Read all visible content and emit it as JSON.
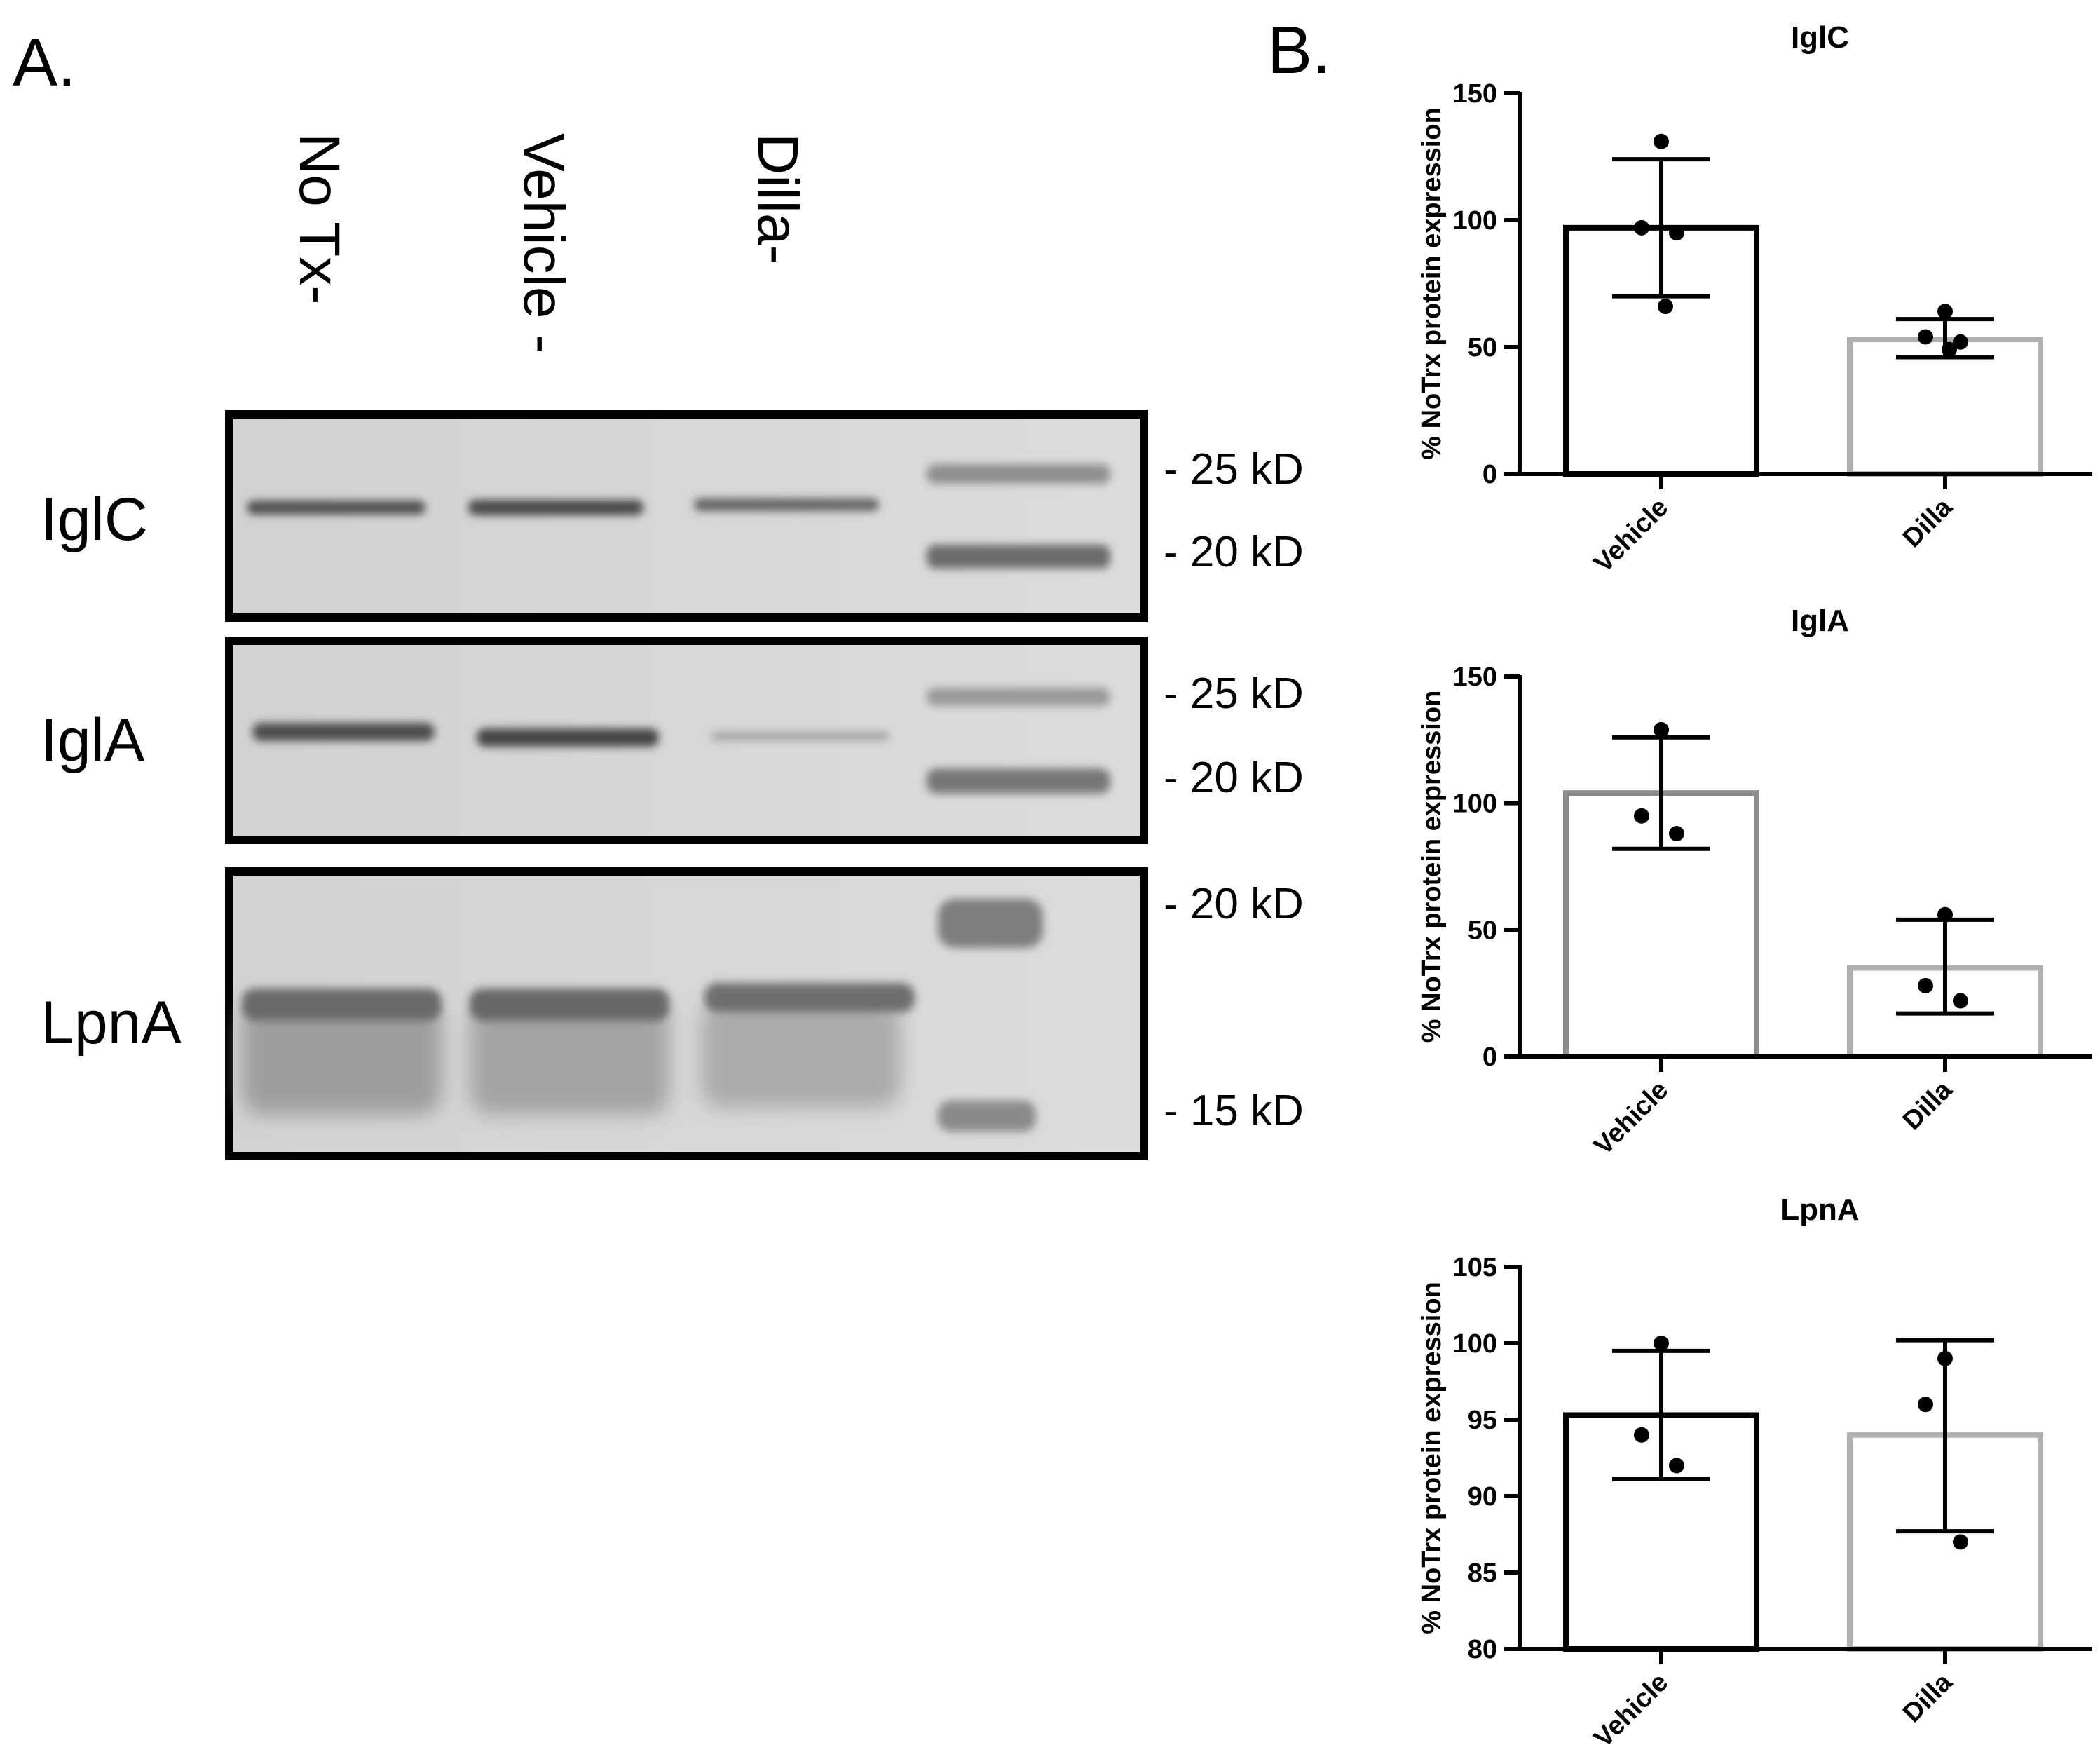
{
  "panel_a": {
    "label": "A.",
    "lanes": [
      "No Tx-",
      "Vehicle -",
      "Dilla-"
    ],
    "blots": [
      {
        "name": "IglC",
        "markers": [
          "- 25 kD",
          "- 20 kD"
        ]
      },
      {
        "name": "IglA",
        "markers": [
          "- 25 kD",
          "- 20 kD"
        ]
      },
      {
        "name": "LpnA",
        "markers": [
          "- 20 kD",
          "- 15 kD"
        ]
      }
    ]
  },
  "panel_b": {
    "label": "B."
  },
  "colors": {
    "black": "#000000",
    "grey_bar": "#b0b0b0",
    "mid_grey_bar": "#8c8c8c",
    "membrane": "#d6d6d6"
  },
  "chart_data": [
    {
      "type": "bar",
      "title": "IglC",
      "ylabel": "% NoTrx protein expression",
      "xlabel": "",
      "categories": [
        "Vehicle",
        "Dilla"
      ],
      "values": [
        97,
        53
      ],
      "error_low": [
        70,
        46
      ],
      "error_high": [
        124,
        61
      ],
      "points": [
        [
          131,
          97,
          95,
          66
        ],
        [
          64,
          54,
          52,
          49
        ]
      ],
      "ylim": [
        0,
        150
      ],
      "yticks": [
        0,
        50,
        100,
        150
      ],
      "bar_colors": [
        "#000000",
        "#b0b0b0"
      ]
    },
    {
      "type": "bar",
      "title": "IglA",
      "ylabel": "% NoTrx protein expression",
      "xlabel": "",
      "categories": [
        "Vehicle",
        "Dilla"
      ],
      "values": [
        104,
        35
      ],
      "error_low": [
        82,
        17
      ],
      "error_high": [
        126,
        54
      ],
      "points": [
        [
          129,
          95,
          88
        ],
        [
          56,
          28,
          22
        ]
      ],
      "ylim": [
        0,
        150
      ],
      "yticks": [
        0,
        50,
        100,
        150
      ],
      "bar_colors": [
        "#8c8c8c",
        "#b0b0b0"
      ]
    },
    {
      "type": "bar",
      "title": "LpnA",
      "ylabel": "% NoTrx protein expression",
      "xlabel": "",
      "categories": [
        "Vehicle",
        "Dilla"
      ],
      "values": [
        95.3,
        94
      ],
      "error_low": [
        91.1,
        87.7
      ],
      "error_high": [
        99.5,
        100.2
      ],
      "points": [
        [
          100,
          94,
          92
        ],
        [
          99,
          96,
          87
        ]
      ],
      "ylim": [
        80,
        105
      ],
      "yticks": [
        80,
        85,
        90,
        95,
        100,
        105
      ],
      "bar_colors": [
        "#000000",
        "#b0b0b0"
      ]
    }
  ]
}
